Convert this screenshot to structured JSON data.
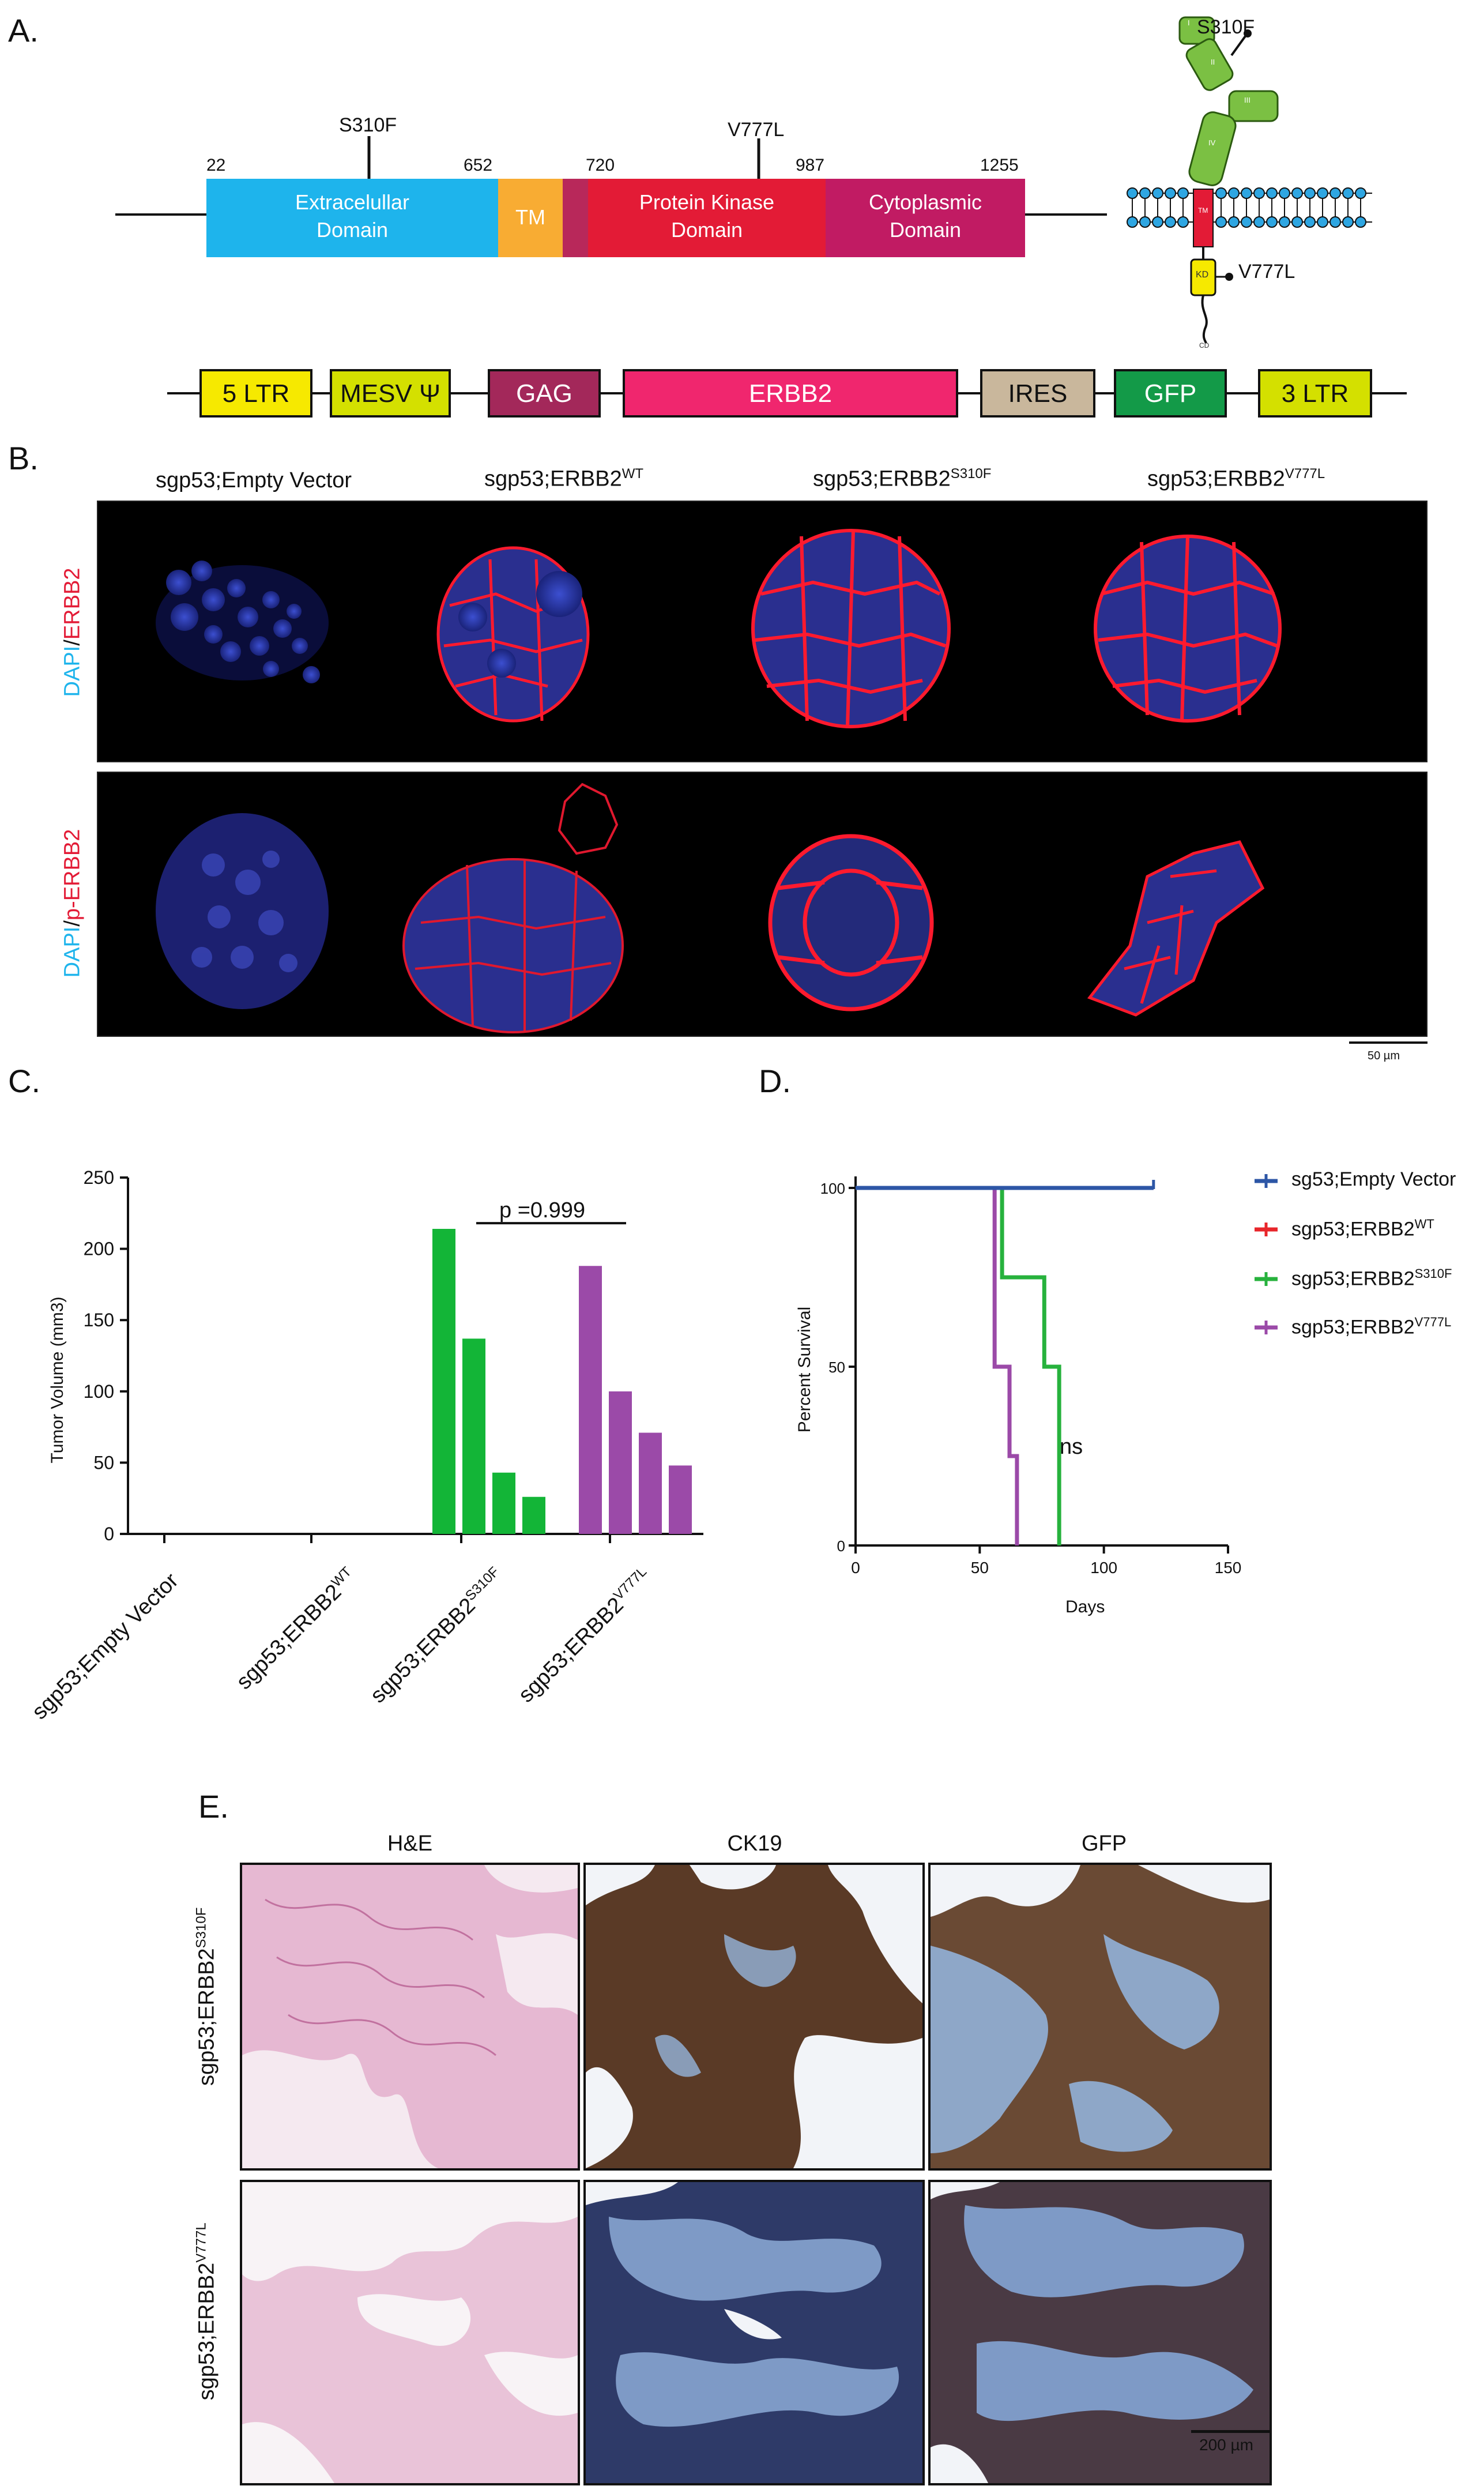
{
  "panels": {
    "a": "A.",
    "b": "B.",
    "c": "C.",
    "d": "D.",
    "e": "E."
  },
  "domain_map": {
    "mutations": {
      "s310f": "S310F",
      "v777l": "V777L"
    },
    "positions": [
      "22",
      "652",
      "720",
      "987",
      "1255"
    ],
    "domains": {
      "ecd_line1": "Extracelullar",
      "ecd_line2": "Domain",
      "tm": "TM",
      "pk_line1": "Protein Kinase",
      "pk_line2": "Domain",
      "cyto_line1": "Cytoplasmic",
      "cyto_line2": "Domain"
    },
    "colors": {
      "ecd": "#1eb4ec",
      "tm": "#f8ac33",
      "tm2": "#b8285a",
      "pk": "#e31b36",
      "cyto": "#c11b63"
    }
  },
  "receptor": {
    "s310f": "S310F",
    "v777l": "V777L",
    "subdomains": [
      "I",
      "II",
      "III",
      "IV"
    ],
    "kd": "KD",
    "cd": "CD",
    "tm": "TM"
  },
  "vector": {
    "elements": [
      "5 LTR",
      "MESV Ψ",
      "GAG",
      "ERBB2",
      "IRES",
      "GFP",
      "3 LTR"
    ]
  },
  "panel_b": {
    "columns": [
      {
        "base": "sgp53;Empty Vector",
        "sup": ""
      },
      {
        "base": "sgp53;ERBB2",
        "sup": "WT"
      },
      {
        "base": "sgp53;ERBB2",
        "sup": "S310F"
      },
      {
        "base": "sgp53;ERBB2",
        "sup": "V777L"
      }
    ],
    "row1_label": {
      "dapi": "DAPI",
      "slash": "/",
      "marker": "ERBB2"
    },
    "row2_label": {
      "dapi": "DAPI",
      "slash": "/",
      "marker": "p-ERBB2"
    },
    "scale_bar": "50 µm"
  },
  "chart_data": [
    {
      "type": "bar",
      "ylabel": "Tumor Volume (mm3)",
      "ylim": [
        0,
        250
      ],
      "yticks": [
        0,
        50,
        100,
        150,
        200,
        250
      ],
      "categories": [
        {
          "base": "sgp53;Empty Vector",
          "sup": ""
        },
        {
          "base": "sgp53;ERBB2",
          "sup": "WT"
        },
        {
          "base": "sgp53;ERBB2",
          "sup": "S310F"
        },
        {
          "base": "sgp53;ERBB2",
          "sup": "V777L"
        }
      ],
      "series": [
        {
          "category": "sgp53;ERBB2 S310F",
          "color": "#13b537",
          "values": [
            214,
            137,
            43,
            26
          ]
        },
        {
          "category": "sgp53;ERBB2 V777L",
          "color": "#9b4aa8",
          "values": [
            188,
            100,
            71,
            48
          ]
        }
      ],
      "annotation": "p =0.999"
    },
    {
      "type": "line",
      "xlabel": "Days",
      "ylabel": "Percent Survival",
      "xlim": [
        0,
        150
      ],
      "ylim": [
        0,
        100
      ],
      "xticks": [
        0,
        50,
        100,
        150
      ],
      "yticks": [
        0,
        50,
        100
      ],
      "annotation": "ns",
      "series": [
        {
          "name": "sg53;Empty Vector",
          "sup": "",
          "color": "#2d56a6",
          "steps": [
            [
              0,
              100
            ],
            [
              120,
              100
            ]
          ]
        },
        {
          "name": "sgp53;ERBB2",
          "sup": "WT",
          "color": "#e8262b",
          "steps": [
            [
              0,
              100
            ],
            [
              120,
              100
            ]
          ]
        },
        {
          "name": "sgp53;ERBB2",
          "sup": "S310F",
          "color": "#27b23d",
          "steps": [
            [
              0,
              100
            ],
            [
              59,
              100
            ],
            [
              59,
              75
            ],
            [
              76,
              75
            ],
            [
              76,
              50
            ],
            [
              82,
              50
            ],
            [
              82,
              0
            ]
          ]
        },
        {
          "name": "sgp53;ERBB2",
          "sup": "V777L",
          "color": "#9b4aa8",
          "steps": [
            [
              0,
              100
            ],
            [
              56,
              100
            ],
            [
              56,
              50
            ],
            [
              62,
              50
            ],
            [
              62,
              25
            ],
            [
              65,
              25
            ],
            [
              65,
              0
            ]
          ]
        }
      ]
    }
  ],
  "panel_e": {
    "columns": [
      "H&E",
      "CK19",
      "GFP"
    ],
    "rows": [
      {
        "base": "sgp53;ERBB2",
        "sup": "S310F"
      },
      {
        "base": "sgp53;ERBB2",
        "sup": "V777L"
      }
    ],
    "scale_bar": "200 µm"
  }
}
